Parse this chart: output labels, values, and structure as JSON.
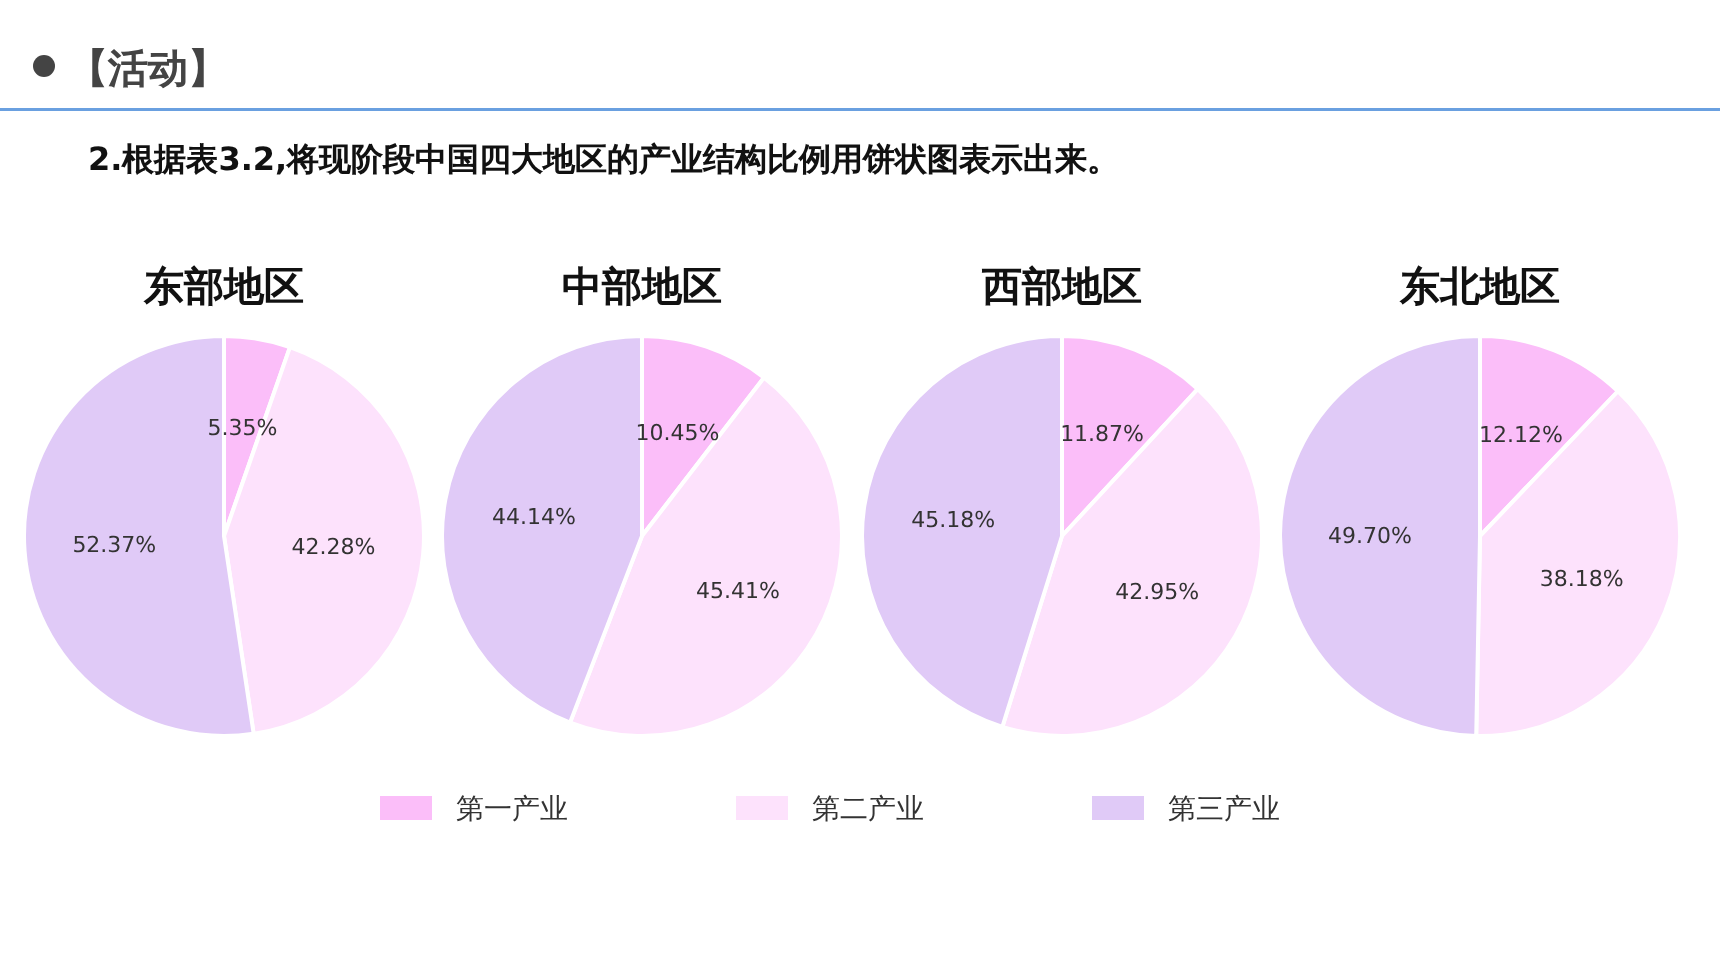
{
  "chart_data": [
    {
      "type": "pie",
      "title": "东部地区",
      "annotations": [
        "【活动】",
        "2.根据表3.2,将现阶段中国四大地区的产业结构比例用饼状图表示出来。"
      ],
      "categories": [
        "第一产业",
        "第二产业",
        "第三产业"
      ],
      "values": [
        5.35,
        42.28,
        52.37
      ],
      "value_labels": [
        "5.35%",
        "42.28%",
        "52.37%"
      ],
      "colors": [
        "#fbbef9",
        "#fde2fc",
        "#e0caf7"
      ],
      "legend": "bottom"
    },
    {
      "type": "pie",
      "title": "中部地区",
      "categories": [
        null,
        null,
        null
      ],
      "values": [
        10.45,
        45.41,
        44.14
      ],
      "value_labels": [
        "10.45%",
        "45.41%",
        "44.14%"
      ],
      "colors": [
        "#fbbef9",
        "#fde2fc",
        "#e0caf7"
      ]
    },
    {
      "type": "pie",
      "title": "西部地区",
      "categories": [
        null,
        null,
        null
      ],
      "values": [
        11.87,
        42.95,
        45.18
      ],
      "value_labels": [
        "11.87%",
        "42.95%",
        "45.18%"
      ],
      "colors": [
        "#fbbef9",
        "#fde2fc",
        "#e0caf7"
      ]
    },
    {
      "type": "pie",
      "title": "东北地区",
      "categories": [
        null,
        null,
        null
      ],
      "values": [
        12.12,
        38.18,
        49.7
      ],
      "value_labels": [
        "12.12%",
        "38.18%",
        "49.70%"
      ],
      "colors": [
        "#fbbef9",
        "#fde2fc",
        "#e0caf7"
      ]
    }
  ]
}
